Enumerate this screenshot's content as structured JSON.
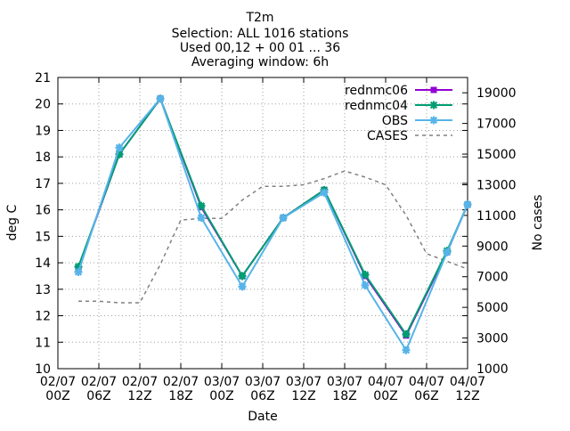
{
  "chart_data": {
    "type": "line",
    "title_lines": [
      "T2m",
      "Selection: ALL    1016 stations",
      "Used 00,12 + 00 01 ... 36",
      "Averaging window:  6h"
    ],
    "xlabel": "Date",
    "ylabel": "deg C",
    "y2label": "No cases",
    "ylim": [
      10,
      21
    ],
    "y2lim": [
      1000,
      20000
    ],
    "y_ticks": [
      10,
      11,
      12,
      13,
      14,
      15,
      16,
      17,
      18,
      19,
      20,
      21
    ],
    "y2_ticks": [
      1000,
      3000,
      5000,
      7000,
      9000,
      11000,
      13000,
      15000,
      17000,
      19000
    ],
    "xlim_hours": [
      0,
      60
    ],
    "x_ticks": [
      {
        "h": 0,
        "line1": "02/07",
        "line2": "00Z"
      },
      {
        "h": 6,
        "line1": "02/07",
        "line2": "06Z"
      },
      {
        "h": 12,
        "line1": "02/07",
        "line2": "12Z"
      },
      {
        "h": 18,
        "line1": "02/07",
        "line2": "18Z"
      },
      {
        "h": 24,
        "line1": "03/07",
        "line2": "00Z"
      },
      {
        "h": 30,
        "line1": "03/07",
        "line2": "06Z"
      },
      {
        "h": 36,
        "line1": "03/07",
        "line2": "12Z"
      },
      {
        "h": 42,
        "line1": "03/07",
        "line2": "18Z"
      },
      {
        "h": 48,
        "line1": "04/07",
        "line2": "00Z"
      },
      {
        "h": 54,
        "line1": "04/07",
        "line2": "06Z"
      },
      {
        "h": 60,
        "line1": "04/07",
        "line2": "12Z"
      }
    ],
    "grid": true,
    "legend_position": "top-right",
    "series": [
      {
        "name": "rednmc06",
        "color": "#9400d3",
        "marker": "filled-square",
        "axis": "left",
        "x": [
          3,
          9,
          15,
          21,
          27,
          33,
          39,
          45,
          51,
          57,
          60
        ],
        "values": [
          13.8,
          18.1,
          20.2,
          16.1,
          13.5,
          15.7,
          16.75,
          13.5,
          11.25,
          14.4,
          16.2
        ]
      },
      {
        "name": "rednmc04",
        "color": "#009e73",
        "marker": "filled-star",
        "axis": "left",
        "x": [
          3,
          9,
          15,
          21,
          27,
          33,
          39,
          45,
          51,
          57,
          60
        ],
        "values": [
          13.85,
          18.1,
          20.2,
          16.15,
          13.5,
          15.7,
          16.75,
          13.55,
          11.3,
          14.45,
          16.2
        ]
      },
      {
        "name": "OBS",
        "color": "#56b4e9",
        "marker": "filled-star",
        "axis": "left",
        "x": [
          3,
          9,
          15,
          21,
          27,
          33,
          39,
          45,
          51,
          57,
          60
        ],
        "values": [
          13.65,
          18.35,
          20.2,
          15.7,
          13.1,
          15.7,
          16.65,
          13.15,
          10.7,
          14.4,
          16.2
        ]
      },
      {
        "name": "CASES",
        "color": "#808080",
        "marker": "none",
        "line_style": "dashed",
        "axis": "right",
        "x": [
          3,
          6,
          9,
          12,
          15,
          18,
          21,
          24,
          27,
          30,
          33,
          36,
          39,
          42,
          45,
          48,
          51,
          54,
          57,
          60
        ],
        "values": [
          5400,
          5400,
          5300,
          5300,
          7800,
          10700,
          10800,
          10800,
          12000,
          12900,
          12900,
          13000,
          13400,
          13900,
          13500,
          13000,
          11000,
          8500,
          8000,
          7500
        ]
      }
    ]
  }
}
